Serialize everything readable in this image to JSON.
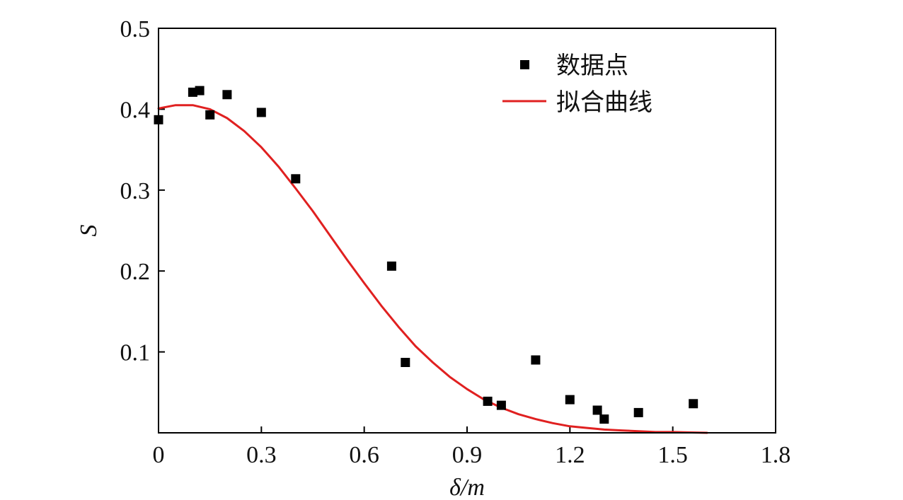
{
  "chart_data": {
    "type": "scatter",
    "xlabel": "δ/m",
    "ylabel": "S",
    "xlim": [
      0,
      1.8
    ],
    "ylim": [
      0,
      0.5
    ],
    "x_ticks": [
      0,
      0.3,
      0.6,
      0.9,
      1.2,
      1.5,
      1.8
    ],
    "x_tick_labels": [
      "0",
      "0.3",
      "0.6",
      "0.9",
      "1.2",
      "1.5",
      "1.8"
    ],
    "y_ticks": [
      0.1,
      0.2,
      0.3,
      0.4,
      0.5
    ],
    "y_tick_labels": [
      "0.1",
      "0.2",
      "0.3",
      "0.4",
      "0.5"
    ],
    "grid": false,
    "legend_position": "top-right",
    "series": [
      {
        "name": "数据点",
        "kind": "scatter",
        "marker": "square",
        "color": "#000000",
        "points": [
          [
            0.0,
            0.387
          ],
          [
            0.1,
            0.421
          ],
          [
            0.12,
            0.423
          ],
          [
            0.15,
            0.393
          ],
          [
            0.2,
            0.418
          ],
          [
            0.3,
            0.396
          ],
          [
            0.4,
            0.314
          ],
          [
            0.68,
            0.206
          ],
          [
            0.72,
            0.087
          ],
          [
            0.96,
            0.039
          ],
          [
            1.0,
            0.034
          ],
          [
            1.1,
            0.09
          ],
          [
            1.2,
            0.041
          ],
          [
            1.28,
            0.028
          ],
          [
            1.3,
            0.017
          ],
          [
            1.4,
            0.025
          ],
          [
            1.56,
            0.036
          ]
        ]
      },
      {
        "name": "拟合曲线",
        "kind": "line",
        "color": "#e02020",
        "points": [
          [
            0.0,
            0.401
          ],
          [
            0.05,
            0.405
          ],
          [
            0.1,
            0.405
          ],
          [
            0.15,
            0.4
          ],
          [
            0.2,
            0.389
          ],
          [
            0.25,
            0.373
          ],
          [
            0.3,
            0.353
          ],
          [
            0.35,
            0.329
          ],
          [
            0.4,
            0.302
          ],
          [
            0.45,
            0.274
          ],
          [
            0.5,
            0.244
          ],
          [
            0.55,
            0.214
          ],
          [
            0.6,
            0.185
          ],
          [
            0.65,
            0.157
          ],
          [
            0.7,
            0.131
          ],
          [
            0.75,
            0.107
          ],
          [
            0.8,
            0.087
          ],
          [
            0.85,
            0.069
          ],
          [
            0.9,
            0.054
          ],
          [
            0.95,
            0.041
          ],
          [
            1.0,
            0.031
          ],
          [
            1.05,
            0.023
          ],
          [
            1.1,
            0.017
          ],
          [
            1.15,
            0.012
          ],
          [
            1.2,
            0.008
          ],
          [
            1.25,
            0.006
          ],
          [
            1.3,
            0.004
          ],
          [
            1.35,
            0.003
          ],
          [
            1.4,
            0.002
          ],
          [
            1.45,
            0.001
          ],
          [
            1.5,
            0.001
          ],
          [
            1.6,
            0.0
          ]
        ]
      }
    ]
  }
}
